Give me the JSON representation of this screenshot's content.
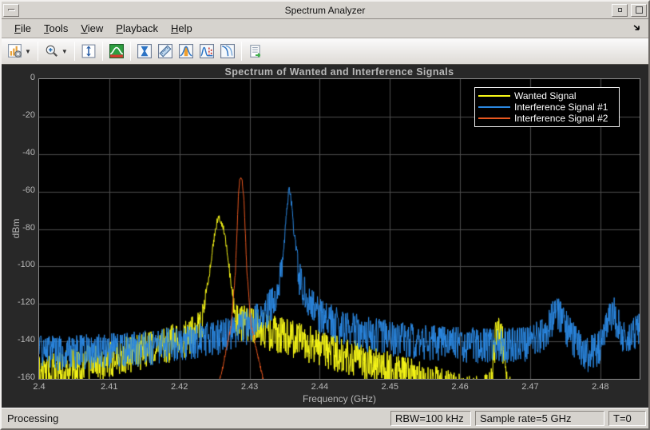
{
  "window": {
    "title": "Spectrum Analyzer"
  },
  "menu": {
    "items": [
      {
        "mnemonic": "F",
        "rest": "ile"
      },
      {
        "mnemonic": "T",
        "rest": "ools"
      },
      {
        "mnemonic": "V",
        "rest": "iew"
      },
      {
        "mnemonic": "P",
        "rest": "layback"
      },
      {
        "mnemonic": "H",
        "rest": "elp"
      }
    ]
  },
  "toolbar": {
    "buttons": [
      {
        "icon": "spectrum-settings-icon",
        "has_dropdown": true
      },
      {
        "icon": "zoom-in-icon",
        "has_dropdown": true
      },
      {
        "icon": "autoscale-y-icon",
        "has_dropdown": false
      },
      {
        "icon": "spectrum-view-icon",
        "has_dropdown": false
      },
      {
        "icon": "peak-finder-icon",
        "has_dropdown": false
      },
      {
        "icon": "cursor-measurements-icon",
        "has_dropdown": false
      },
      {
        "icon": "channel-measurements-icon",
        "has_dropdown": false
      },
      {
        "icon": "distortion-measurements-icon",
        "has_dropdown": false
      },
      {
        "icon": "ccdf-measurements-icon",
        "has_dropdown": false
      },
      {
        "icon": "playback-settings-icon",
        "has_dropdown": false
      }
    ]
  },
  "statusbar": {
    "status": "Processing",
    "panels": [
      "RBW=100 kHz",
      "Sample rate=5 GHz",
      "T=0"
    ]
  },
  "chart_data": {
    "type": "line",
    "title": "Spectrum of Wanted and Interference Signals",
    "xlabel": "Frequency (GHz)",
    "ylabel": "dBm",
    "xlim": [
      2.4,
      2.4856
    ],
    "ylim": [
      -160,
      0
    ],
    "xticks": [
      2.4,
      2.41,
      2.42,
      2.43,
      2.44,
      2.45,
      2.46,
      2.47,
      2.48
    ],
    "xtick_labels": [
      "2.4",
      "2.41",
      "2.42",
      "2.43",
      "2.44",
      "2.45",
      "2.46",
      "2.47",
      "2.48"
    ],
    "yticks": [
      0,
      -20,
      -40,
      -60,
      -80,
      -100,
      -120,
      -140,
      -160
    ],
    "grid": true,
    "legend_position": "top-right",
    "colors": {
      "plot_background": "#000000",
      "figure_background": "#282828",
      "grid": "#4d4d4d",
      "axis": "#8c8c8c",
      "tick_text": "#b8b8b8"
    },
    "series": [
      {
        "name": "Wanted Signal",
        "color": "#f8f818",
        "seed": 7,
        "jitter": {
          "noise_db": 20,
          "peak_db": 5,
          "threshold_dbm": -112
        },
        "peak": {
          "freq_ghz": 2.4257,
          "level_dbm": -72
        },
        "envelope": [
          [
            2.4,
            -148
          ],
          [
            2.406,
            -143
          ],
          [
            2.412,
            -138
          ],
          [
            2.418,
            -132
          ],
          [
            2.4215,
            -128
          ],
          [
            2.4232,
            -122
          ],
          [
            2.424,
            -108
          ],
          [
            2.4248,
            -86
          ],
          [
            2.4253,
            -75
          ],
          [
            2.4257,
            -72
          ],
          [
            2.4262,
            -75
          ],
          [
            2.4267,
            -86
          ],
          [
            2.4274,
            -108
          ],
          [
            2.4282,
            -120
          ],
          [
            2.43,
            -121
          ],
          [
            2.4335,
            -126
          ],
          [
            2.438,
            -131
          ],
          [
            2.443,
            -137
          ],
          [
            2.448,
            -143
          ],
          [
            2.453,
            -149
          ],
          [
            2.458,
            -155
          ],
          [
            2.462,
            -159
          ],
          [
            2.4643,
            -155
          ],
          [
            2.465,
            -130
          ],
          [
            2.4655,
            -126
          ],
          [
            2.466,
            -130
          ],
          [
            2.4668,
            -155
          ],
          [
            2.468,
            -168
          ],
          [
            2.4856,
            -185
          ]
        ]
      },
      {
        "name": "Interference Signal #1",
        "color": "#2b87e0",
        "seed": 13,
        "jitter": {
          "noise_db": 19,
          "peak_db": 6,
          "threshold_dbm": -92
        },
        "peak": {
          "freq_ghz": 2.4356,
          "level_dbm": -56
        },
        "envelope": [
          [
            2.4,
            -137
          ],
          [
            2.408,
            -136
          ],
          [
            2.416,
            -134
          ],
          [
            2.422,
            -131
          ],
          [
            2.426,
            -128
          ],
          [
            2.4295,
            -123
          ],
          [
            2.432,
            -117
          ],
          [
            2.4338,
            -106
          ],
          [
            2.4348,
            -90
          ],
          [
            2.4353,
            -68
          ],
          [
            2.4356,
            -56
          ],
          [
            2.436,
            -64
          ],
          [
            2.4364,
            -82
          ],
          [
            2.4372,
            -98
          ],
          [
            2.4383,
            -110
          ],
          [
            2.44,
            -117
          ],
          [
            2.443,
            -123
          ],
          [
            2.447,
            -127
          ],
          [
            2.452,
            -130
          ],
          [
            2.458,
            -132
          ],
          [
            2.465,
            -133
          ],
          [
            2.4695,
            -132
          ],
          [
            2.472,
            -127
          ],
          [
            2.4731,
            -119
          ],
          [
            2.4738,
            -114
          ],
          [
            2.4746,
            -120
          ],
          [
            2.476,
            -129
          ],
          [
            2.478,
            -138
          ],
          [
            2.48,
            -134
          ],
          [
            2.4812,
            -121
          ],
          [
            2.4818,
            -115
          ],
          [
            2.4825,
            -121
          ],
          [
            2.4838,
            -133
          ],
          [
            2.485,
            -126
          ],
          [
            2.4856,
            -122
          ]
        ]
      },
      {
        "name": "Interference Signal #2",
        "color": "#e8571f",
        "seed": 3,
        "jitter": {
          "noise_db": 2.5,
          "peak_db": 2,
          "threshold_dbm": -100
        },
        "peak": {
          "freq_ghz": 2.4287,
          "level_dbm": -52
        },
        "envelope": [
          [
            2.4,
            -210
          ],
          [
            2.423,
            -205
          ],
          [
            2.4246,
            -176
          ],
          [
            2.4262,
            -152
          ],
          [
            2.4274,
            -130
          ],
          [
            2.428,
            -100
          ],
          [
            2.4284,
            -62
          ],
          [
            2.4286,
            -52
          ],
          [
            2.4289,
            -52
          ],
          [
            2.4292,
            -64
          ],
          [
            2.4296,
            -100
          ],
          [
            2.4302,
            -130
          ],
          [
            2.4315,
            -152
          ],
          [
            2.433,
            -176
          ],
          [
            2.4345,
            -205
          ],
          [
            2.4856,
            -210
          ]
        ]
      }
    ]
  }
}
